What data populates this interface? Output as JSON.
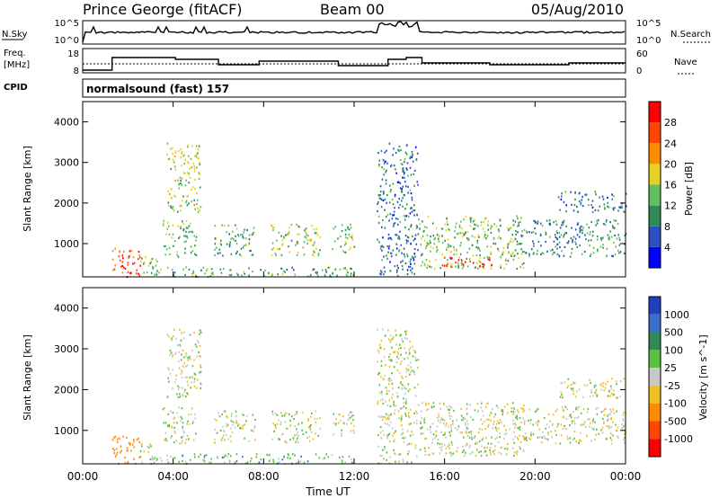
{
  "header": {
    "station": "Prince George (fitACF)",
    "beam": "Beam 00",
    "date": "05/Aug/2010"
  },
  "noise_panel": {
    "left_label": "N.Sky",
    "right_label": "N.Search",
    "left_ticks": [
      "10^5",
      "10^0"
    ],
    "right_ticks": [
      "10^5",
      "10^0"
    ]
  },
  "freq_panel": {
    "left_label_1": "Freq.",
    "left_label_2": "[MHz]",
    "right_label": "Nave",
    "left_ticks": [
      "18",
      "8"
    ],
    "right_ticks": [
      "60",
      "0"
    ]
  },
  "cpid_panel": {
    "label": "CPID",
    "text": "normalsound (fast) 157"
  },
  "x_axis": {
    "title": "Time UT",
    "ticks": [
      "00:00",
      "04:00",
      "08:00",
      "12:00",
      "16:00",
      "20:00",
      "00:00"
    ]
  },
  "power_panel": {
    "ylabel": "Slant Range [km]",
    "yticks": [
      "4000",
      "3000",
      "2000",
      "1000"
    ],
    "colorbar_label": "Power [dB]",
    "colorbar_ticks": [
      "28",
      "24",
      "20",
      "16",
      "12",
      "8",
      "4"
    ],
    "colors": [
      "#0000ff",
      "#2a4fc0",
      "#2e8b57",
      "#60c060",
      "#e6d020",
      "#ff8c00",
      "#ff4500",
      "#ff0000"
    ]
  },
  "velocity_panel": {
    "ylabel": "Slant Range [km]",
    "yticks": [
      "4000",
      "3000",
      "2000",
      "1000"
    ],
    "colorbar_label": "Velocity [m s^-1]",
    "colorbar_ticks": [
      "1000",
      "500",
      "100",
      "25",
      "-25",
      "-100",
      "-500",
      "-1000"
    ],
    "colors": [
      "#2040c0",
      "#3a6ecb",
      "#2e8b57",
      "#5cc040",
      "#c8c8c8",
      "#f0c020",
      "#ff8c00",
      "#ff4500",
      "#ff0000"
    ]
  },
  "chart_data": {
    "type": "heatmap",
    "x_range_hours": [
      0,
      24
    ],
    "y_range_km": [
      180,
      4500
    ],
    "grid": false,
    "scatter_regions": [
      {
        "t0": 1.3,
        "t1": 2.6,
        "r0": 200,
        "r1": 900,
        "power": 24,
        "velocity": -200
      },
      {
        "t0": 2.5,
        "t1": 3.3,
        "r0": 200,
        "r1": 700,
        "power": 12,
        "velocity": 0
      },
      {
        "t0": 3.7,
        "t1": 5.2,
        "r0": 1800,
        "r1": 3500,
        "power": 14,
        "velocity": 0
      },
      {
        "t0": 3.5,
        "t1": 5.0,
        "r0": 700,
        "r1": 1600,
        "power": 12,
        "velocity": 0
      },
      {
        "t0": 5.8,
        "t1": 7.6,
        "r0": 700,
        "r1": 1500,
        "power": 10,
        "velocity": 0
      },
      {
        "t0": 8.3,
        "t1": 10.5,
        "r0": 700,
        "r1": 1500,
        "power": 14,
        "velocity": 0
      },
      {
        "t0": 11.0,
        "t1": 12.0,
        "r0": 800,
        "r1": 1500,
        "power": 12,
        "velocity": 0
      },
      {
        "t0": 3.0,
        "t1": 12.0,
        "r0": 200,
        "r1": 450,
        "power": 10,
        "velocity": 50
      },
      {
        "t0": 13.0,
        "t1": 14.8,
        "r0": 200,
        "r1": 3500,
        "power": 6,
        "velocity": 0
      },
      {
        "t0": 14.8,
        "t1": 19.5,
        "r0": 400,
        "r1": 1700,
        "power": 12,
        "velocity": 0
      },
      {
        "t0": 15.8,
        "t1": 18.2,
        "r0": 450,
        "r1": 700,
        "power": 26,
        "velocity": 0
      },
      {
        "t0": 19.0,
        "t1": 24.0,
        "r0": 700,
        "r1": 1600,
        "power": 8,
        "velocity": 0
      },
      {
        "t0": 21.0,
        "t1": 24.0,
        "r0": 1800,
        "r1": 2300,
        "power": 6,
        "velocity": 0
      }
    ]
  }
}
